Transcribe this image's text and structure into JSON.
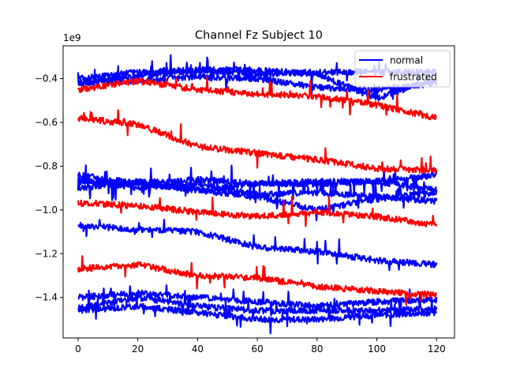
{
  "chart_data": {
    "type": "line",
    "title": "Channel Fz Subject 10",
    "xlabel": "",
    "ylabel": "",
    "offset_label": "1e9",
    "xlim": [
      -5,
      126
    ],
    "ylim": [
      -1.585,
      -0.25
    ],
    "xticks": [
      0,
      20,
      40,
      60,
      80,
      100,
      120
    ],
    "yticks": [
      -1.4,
      -1.2,
      -1.0,
      -0.8,
      -0.6,
      -0.4
    ],
    "ytick_labels": [
      "−1.4",
      "−1.2",
      "−1.0",
      "−0.8",
      "−0.6",
      "−0.4"
    ],
    "grid": false,
    "legend": {
      "placement": "upper-right",
      "entries": [
        {
          "label": "normal",
          "color": "#0000ff"
        },
        {
          "label": "frustrated",
          "color": "#ff0000"
        }
      ]
    },
    "series": [
      {
        "group": "normal",
        "color": "#0000ff",
        "points": [
          [
            0,
            -0.4
          ],
          [
            20,
            -0.37
          ],
          [
            40,
            -0.36
          ],
          [
            60,
            -0.36
          ],
          [
            80,
            -0.38
          ],
          [
            100,
            -0.49
          ],
          [
            120,
            -0.4
          ]
        ]
      },
      {
        "group": "normal",
        "color": "#0000ff",
        "points": [
          [
            0,
            -0.42
          ],
          [
            20,
            -0.39
          ],
          [
            40,
            -0.36
          ],
          [
            60,
            -0.38
          ],
          [
            80,
            -0.37
          ],
          [
            100,
            -0.37
          ],
          [
            120,
            -0.37
          ]
        ]
      },
      {
        "group": "normal",
        "color": "#0000ff",
        "points": [
          [
            0,
            -0.42
          ],
          [
            20,
            -0.41
          ],
          [
            40,
            -0.39
          ],
          [
            60,
            -0.4
          ],
          [
            80,
            -0.44
          ],
          [
            100,
            -0.45
          ],
          [
            120,
            -0.42
          ]
        ]
      },
      {
        "group": "normal",
        "color": "#0000ff",
        "points": [
          [
            0,
            -0.84
          ],
          [
            20,
            -0.88
          ],
          [
            40,
            -0.86
          ],
          [
            60,
            -0.88
          ],
          [
            80,
            -0.88
          ],
          [
            100,
            -0.87
          ],
          [
            120,
            -0.84
          ]
        ]
      },
      {
        "group": "normal",
        "color": "#0000ff",
        "points": [
          [
            0,
            -0.86
          ],
          [
            20,
            -0.9
          ],
          [
            40,
            -0.88
          ],
          [
            60,
            -0.93
          ],
          [
            80,
            -0.92
          ],
          [
            100,
            -0.94
          ],
          [
            120,
            -0.96
          ]
        ]
      },
      {
        "group": "normal",
        "color": "#0000ff",
        "points": [
          [
            0,
            -0.9
          ],
          [
            20,
            -0.87
          ],
          [
            40,
            -0.91
          ],
          [
            60,
            -0.88
          ],
          [
            80,
            -0.87
          ],
          [
            100,
            -0.87
          ],
          [
            120,
            -0.91
          ]
        ]
      },
      {
        "group": "normal",
        "color": "#0000ff",
        "points": [
          [
            0,
            -0.87
          ],
          [
            20,
            -0.88
          ],
          [
            40,
            -0.91
          ],
          [
            60,
            -0.94
          ],
          [
            80,
            -1.0
          ],
          [
            100,
            -0.95
          ],
          [
            120,
            -0.92
          ]
        ]
      },
      {
        "group": "normal",
        "color": "#0000ff",
        "points": [
          [
            0,
            -1.07
          ],
          [
            20,
            -1.09
          ],
          [
            40,
            -1.1
          ],
          [
            60,
            -1.17
          ],
          [
            80,
            -1.19
          ],
          [
            100,
            -1.23
          ],
          [
            120,
            -1.25
          ]
        ]
      },
      {
        "group": "normal",
        "color": "#0000ff",
        "points": [
          [
            0,
            -1.4
          ],
          [
            20,
            -1.38
          ],
          [
            40,
            -1.4
          ],
          [
            60,
            -1.42
          ],
          [
            80,
            -1.44
          ],
          [
            100,
            -1.42
          ],
          [
            120,
            -1.41
          ]
        ]
      },
      {
        "group": "normal",
        "color": "#0000ff",
        "points": [
          [
            0,
            -1.45
          ],
          [
            20,
            -1.4
          ],
          [
            40,
            -1.44
          ],
          [
            60,
            -1.46
          ],
          [
            80,
            -1.46
          ],
          [
            100,
            -1.46
          ],
          [
            120,
            -1.45
          ]
        ]
      },
      {
        "group": "normal",
        "color": "#0000ff",
        "points": [
          [
            0,
            -1.46
          ],
          [
            20,
            -1.44
          ],
          [
            40,
            -1.47
          ],
          [
            60,
            -1.5
          ],
          [
            80,
            -1.5
          ],
          [
            100,
            -1.48
          ],
          [
            120,
            -1.47
          ]
        ]
      },
      {
        "group": "frustrated",
        "color": "#ff0000",
        "points": [
          [
            0,
            -0.45
          ],
          [
            20,
            -0.41
          ],
          [
            40,
            -0.45
          ],
          [
            60,
            -0.47
          ],
          [
            80,
            -0.48
          ],
          [
            100,
            -0.52
          ],
          [
            120,
            -0.58
          ]
        ]
      },
      {
        "group": "frustrated",
        "color": "#ff0000",
        "points": [
          [
            0,
            -0.58
          ],
          [
            20,
            -0.61
          ],
          [
            40,
            -0.71
          ],
          [
            60,
            -0.74
          ],
          [
            80,
            -0.77
          ],
          [
            100,
            -0.81
          ],
          [
            120,
            -0.82
          ]
        ]
      },
      {
        "group": "frustrated",
        "color": "#ff0000",
        "points": [
          [
            0,
            -0.97
          ],
          [
            20,
            -0.98
          ],
          [
            40,
            -1.01
          ],
          [
            60,
            -1.03
          ],
          [
            80,
            -1.01
          ],
          [
            100,
            -1.03
          ],
          [
            120,
            -1.07
          ]
        ]
      },
      {
        "group": "frustrated",
        "color": "#ff0000",
        "points": [
          [
            0,
            -1.27
          ],
          [
            20,
            -1.25
          ],
          [
            40,
            -1.3
          ],
          [
            60,
            -1.31
          ],
          [
            80,
            -1.35
          ],
          [
            100,
            -1.37
          ],
          [
            120,
            -1.39
          ]
        ]
      }
    ]
  }
}
